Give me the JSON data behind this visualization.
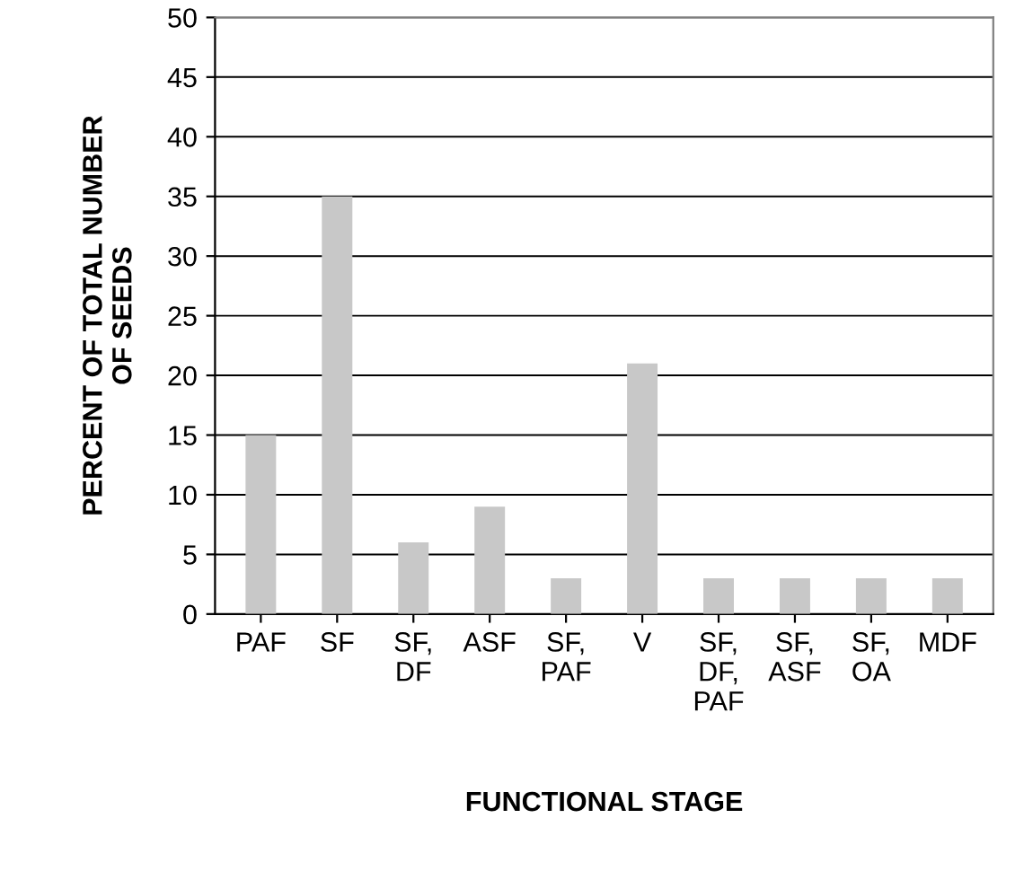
{
  "chart_data": {
    "type": "bar",
    "xlabel": "FUNCTIONAL STAGE",
    "ylabel": "PERCENT OF TOTAL NUMBER\nOF SEEDS",
    "categories": [
      "PAF",
      "SF",
      "SF,\nDF",
      "ASF",
      "SF,\nPAF",
      "V",
      "SF,\nDF,\nPAF",
      "SF,\nASF",
      "SF,\nOA",
      "MDF"
    ],
    "values": [
      15,
      35,
      6,
      9,
      3,
      21,
      3,
      3,
      3,
      3
    ],
    "color": "#c8c8c8",
    "ylim": [
      0,
      50
    ],
    "yticks": [
      0,
      5,
      10,
      15,
      20,
      25,
      30,
      35,
      40,
      45,
      50
    ],
    "grid": "y",
    "legend": false
  }
}
